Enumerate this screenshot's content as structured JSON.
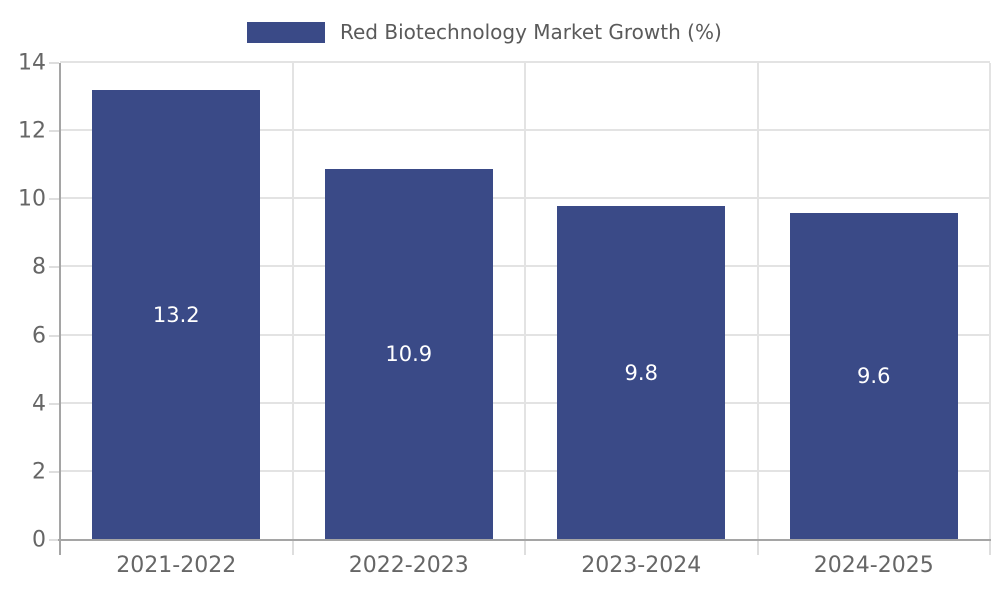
{
  "chart_data": {
    "type": "bar",
    "title": "Red Biotechnology Market Growth (%)",
    "categories": [
      "2021-2022",
      "2022-2023",
      "2023-2024",
      "2024-2025"
    ],
    "values": [
      13.2,
      10.9,
      9.8,
      9.6
    ],
    "value_labels": [
      "13.2",
      "10.9",
      "9.8",
      "9.6"
    ],
    "xlabel": "",
    "ylabel": "",
    "ylim": [
      0,
      14
    ],
    "yticks": [
      0,
      2,
      4,
      6,
      8,
      10,
      12,
      14
    ],
    "grid": true,
    "legend_position": "top-center",
    "legend_entries": [
      "Red Biotechnology Market Growth (%)"
    ],
    "colors": {
      "bar": "#3a4a87",
      "bar_value_text": "#ffffff",
      "grid": "#e3e3e3",
      "axis": "#a5a5a5",
      "tick_text": "#666666",
      "legend_text": "#5a5a5a",
      "background": "#ffffff"
    }
  }
}
